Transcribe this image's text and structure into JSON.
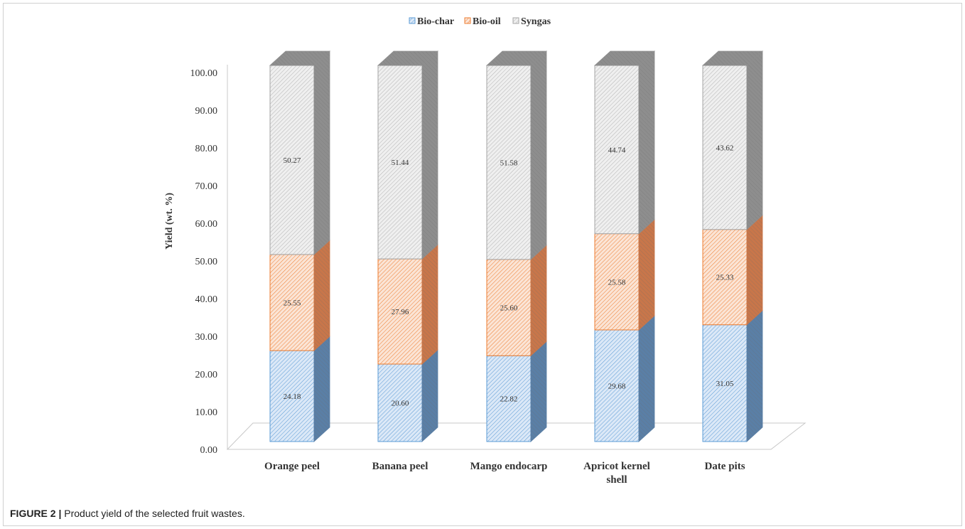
{
  "chart_data": {
    "type": "bar",
    "stacked": true,
    "style_3d": true,
    "categories": [
      "Orange peel",
      "Banana peel",
      "Mango endocarp",
      "Apricot kernel shell",
      "Date pits"
    ],
    "category_lines": [
      [
        "Orange peel"
      ],
      [
        "Banana peel"
      ],
      [
        "Mango endocarp"
      ],
      [
        "Apricot kernel",
        "shell"
      ],
      [
        "Date pits"
      ]
    ],
    "series": [
      {
        "name": "Bio-char",
        "values": [
          24.18,
          20.6,
          22.82,
          29.68,
          31.05
        ],
        "labels": [
          "24.18",
          "20.60",
          "22.82",
          "29.68",
          "31.05"
        ],
        "fill": "#dbe8f7",
        "hatch": "#5b9bd5",
        "side": "#5a7fa6",
        "edge": "#5b9bd5"
      },
      {
        "name": "Bio-oil",
        "values": [
          25.55,
          27.96,
          25.6,
          25.58,
          25.33
        ],
        "labels": [
          "25.55",
          "27.96",
          "25.60",
          "25.58",
          "25.33"
        ],
        "fill": "#fbe4d5",
        "hatch": "#ed7d31",
        "side": "#c8764a",
        "edge": "#ed7d31"
      },
      {
        "name": "Syngas",
        "values": [
          50.27,
          51.44,
          51.58,
          44.74,
          43.62
        ],
        "labels": [
          "50.27",
          "51.44",
          "51.58",
          "44.74",
          "43.62"
        ],
        "fill": "#efefef",
        "hatch": "#b4b4b4",
        "side": "#8e8e8e",
        "edge": "#a5a5a5"
      }
    ],
    "ylabel": "Yield (wt. %)",
    "xlabel": "",
    "ylim": [
      0,
      100
    ],
    "yticks": [
      "0.00",
      "10.00",
      "20.00",
      "30.00",
      "40.00",
      "50.00",
      "60.00",
      "70.00",
      "80.00",
      "90.00",
      "100.00"
    ],
    "legend_position": "top",
    "grid": false
  },
  "caption": {
    "label": "FIGURE 2 |",
    "text": " Product yield of the selected fruit wastes."
  }
}
